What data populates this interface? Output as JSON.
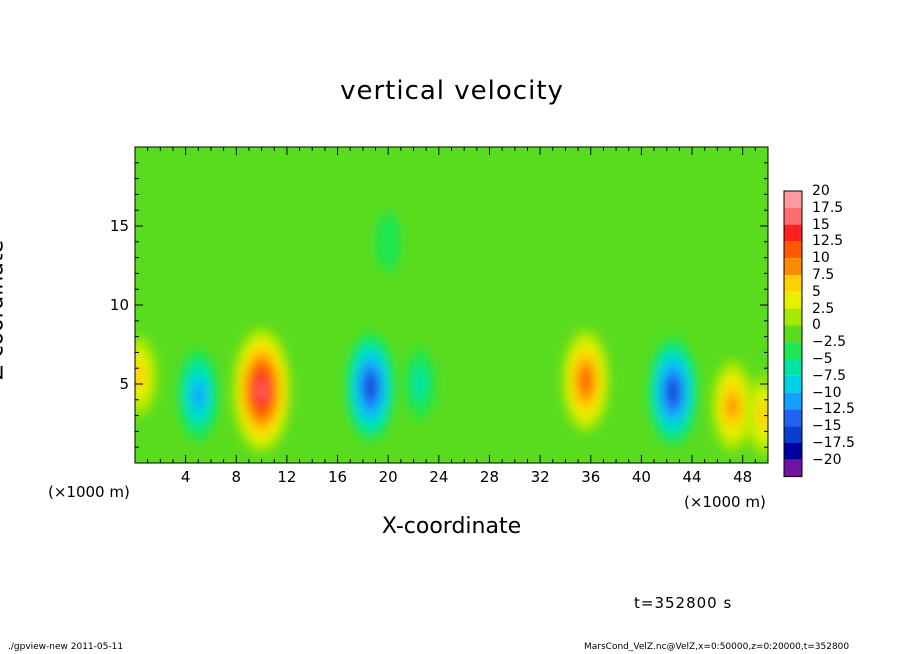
{
  "chart_data": {
    "type": "heatmap",
    "title": "vertical velocity",
    "xlabel": "X-coordinate",
    "ylabel": "Z-coordinate",
    "x_unit": "(×1000 m)",
    "xlim": [
      0,
      50
    ],
    "ylim": [
      0,
      20
    ],
    "x_ticks": [
      "4",
      "8",
      "12",
      "16",
      "20",
      "24",
      "28",
      "32",
      "36",
      "40",
      "44",
      "48"
    ],
    "y_ticks": [
      "5",
      "10",
      "15"
    ],
    "colorbar": {
      "labels": [
        "20",
        "17.5",
        "15",
        "12.5",
        "10",
        "7.5",
        "5",
        "2.5",
        "0",
        "−2.5",
        "−5",
        "−7.5",
        "−10",
        "−12.5",
        "−15",
        "−17.5",
        "−20"
      ],
      "values": [
        20,
        17.5,
        15,
        12.5,
        10,
        7.5,
        5,
        2.5,
        0,
        -2.5,
        -5,
        -7.5,
        -10,
        -12.5,
        -15,
        -17.5,
        -20
      ],
      "colors": [
        "#ff9aa2",
        "#ff6e6e",
        "#ff2020",
        "#ff5a00",
        "#ff8c00",
        "#ffd000",
        "#e6f000",
        "#a6e800",
        "#5adc1e",
        "#1ee650",
        "#00e6a0",
        "#00d2e6",
        "#14a0ff",
        "#1e64f0",
        "#0a3cd2",
        "#0000a0",
        "#6e14a0"
      ]
    },
    "features": [
      {
        "x": 5.0,
        "z": 4.3,
        "value": -10
      },
      {
        "x": 10.0,
        "z": 4.6,
        "value": 17.5
      },
      {
        "x": 18.6,
        "z": 4.8,
        "value": -14
      },
      {
        "x": 22.5,
        "z": 5.0,
        "value": -5
      },
      {
        "x": 35.6,
        "z": 5.2,
        "value": 12.5
      },
      {
        "x": 42.5,
        "z": 4.5,
        "value": -14
      },
      {
        "x": 47.2,
        "z": 3.6,
        "value": 10
      },
      {
        "x": 0.3,
        "z": 5.5,
        "value": 7.5
      },
      {
        "x": 49.7,
        "z": 3.0,
        "value": 7.5
      },
      {
        "x": 20.0,
        "z": 14.0,
        "value": -2.5
      }
    ],
    "grid": false,
    "legend": "colorbar-right"
  },
  "footer": {
    "time": "t=352800 s",
    "left": "./gpview-new  2011-05-11",
    "right": "MarsCond_VelZ.nc@VelZ,x=0:50000,z=0:20000,t=352800"
  }
}
